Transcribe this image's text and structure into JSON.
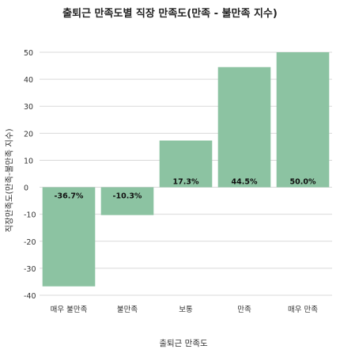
{
  "chart_data": {
    "type": "bar",
    "title": "출퇴근 만족도별 직장 만족도(만족 - 불만족 지수)",
    "xlabel": "출퇴근 만족도",
    "ylabel": "직장만족도(만족-불만족 지수)",
    "categories": [
      "매우 불만족",
      "불만족",
      "보통",
      "만족",
      "매우 만족"
    ],
    "values": [
      -36.7,
      -10.3,
      17.3,
      44.5,
      50.0
    ],
    "data_labels": [
      "-36.7%",
      "-10.3%",
      "17.3%",
      "44.5%",
      "50.0%"
    ],
    "yticks": [
      50,
      40,
      30,
      20,
      10,
      0,
      -10,
      -20,
      -30,
      -40
    ],
    "ylim": [
      -40,
      50
    ],
    "grid": true,
    "bar_color": "#8cc3a2"
  }
}
